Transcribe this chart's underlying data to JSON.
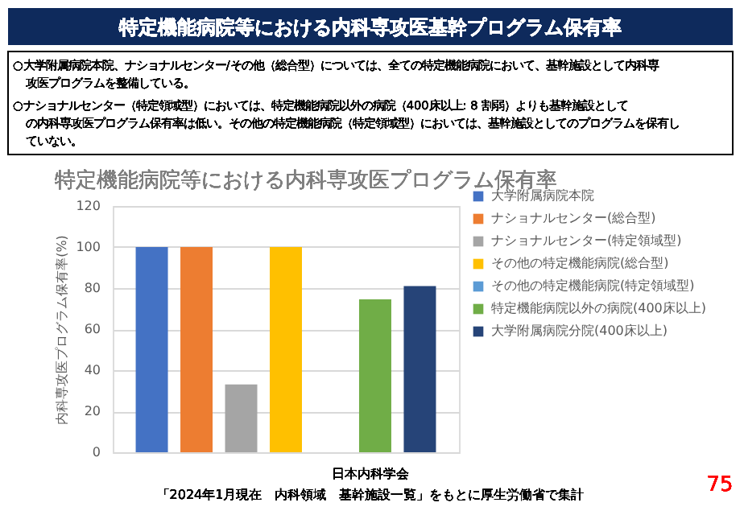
{
  "chart_data": {
    "type": "bar",
    "title": "特定機能病院等における内科専攻医基幹プログラム保有率",
    "subtitle": "特定機能病院等における内科専攻医プログラム保有率",
    "ylabel": "内科専攻医プログラム保有率(%)",
    "categories": [
      null
    ],
    "series": [
      {
        "name": "大学附属病院本院",
        "color": "#4472c4",
        "values": [
          100
        ]
      },
      {
        "name": "ナショナルセンター(総合型)",
        "color": "#ed7d31",
        "values": [
          100
        ]
      },
      {
        "name": "ナショナルセンター(特定領域型)",
        "color": "#a5a5a5",
        "values": [
          33
        ]
      },
      {
        "name": "その他の特定機能病院(総合型)",
        "color": "#ffc000",
        "values": [
          100
        ]
      },
      {
        "name": "その他の特定機能病院(特定領域型)",
        "color": "#5b9bd5",
        "values": [
          0
        ]
      },
      {
        "name": "特定機能病院以外の病院(400床以上)",
        "color": "#70ad47",
        "values": [
          74.5
        ]
      },
      {
        "name": "大学附属病院分院(400床以上)",
        "color": "#264478",
        "values": [
          81
        ]
      }
    ],
    "ylim": [
      0,
      120
    ],
    "yticks": [
      0,
      20,
      40,
      60,
      80,
      100,
      120
    ],
    "grid": "y",
    "legend": "right",
    "annotations": [
      "○大学附属病院本院、ナショナルセンター/その他（総合型）については、全ての特定機能病院において、基幹施設として内科専攻医プログラムを整備している。",
      "○ナショナルセンター（特定領域型）においては、特定機能病院以外の病院（400床以上: 8 割弱）よりも基幹施設としての内科専攻医プログラム保有率は低い。その他の特定機能病院（特定領域型）においては、基幹施設としてのプログラムを保有していない。",
      "日本内科学会",
      "「2024年1月現在　内科領域　基幹施設一覧」をもとに厚生労働省で集計",
      "75"
    ]
  }
}
